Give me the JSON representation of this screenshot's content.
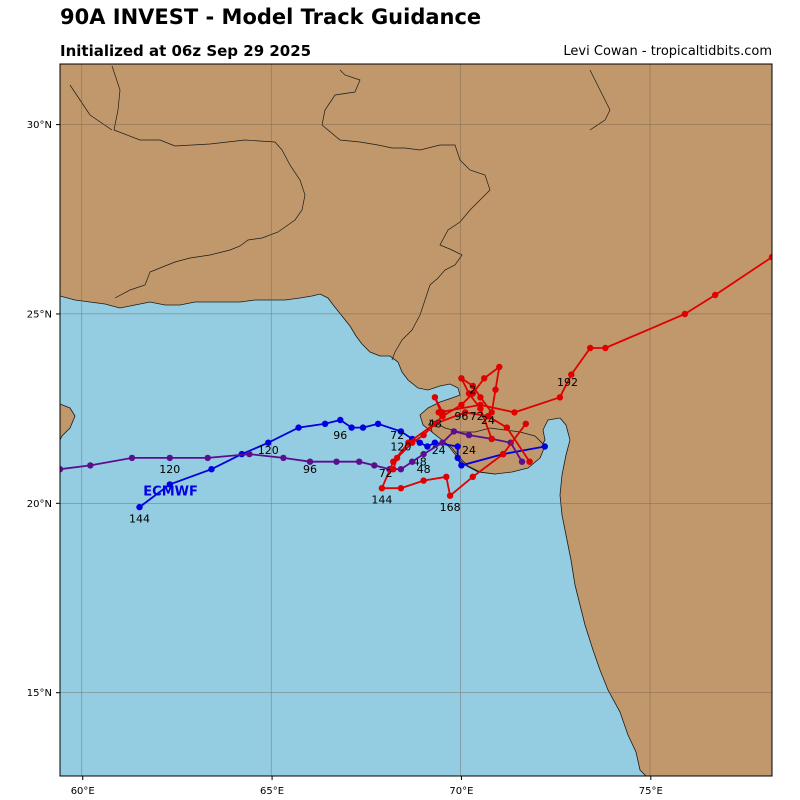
{
  "header": {
    "title": "90A INVEST - Model Track Guidance",
    "subtitle": "Initialized at 06z Sep 29 2025",
    "credit": "Levi Cowan - tropicaltidbits.com"
  },
  "colors": {
    "land": "#c0986c",
    "ocean": "#94cce2",
    "coast": "#1a1a1a",
    "grid": "#6b5a4a",
    "ecmwf": "#0000e0",
    "red_track": "#e00000",
    "purple_track": "#5b0f8f"
  },
  "map": {
    "lon_range": [
      59.4,
      78.2
    ],
    "lat_range": [
      12.8,
      31.6
    ],
    "lon_ticks": [
      {
        "value": 60,
        "label": "60°E"
      },
      {
        "value": 65,
        "label": "65°E"
      },
      {
        "value": 70,
        "label": "70°E"
      },
      {
        "value": 75,
        "label": "75°E"
      }
    ],
    "lat_ticks": [
      {
        "value": 15,
        "label": "15°N"
      },
      {
        "value": 20,
        "label": "20°N"
      },
      {
        "value": 25,
        "label": "25°N"
      },
      {
        "value": 30,
        "label": "30°N"
      }
    ]
  },
  "chart_data": {
    "type": "scatter",
    "title": "90A INVEST - Model Track Guidance",
    "subtitle": "Initialized at 06z Sep 29 2025",
    "xlim": [
      59.4,
      78.2
    ],
    "ylim": [
      12.8,
      31.6
    ],
    "series": [
      {
        "name": "ECMWF",
        "color": "#0000e0",
        "points": [
          [
            72.2,
            21.5
          ],
          [
            71.1,
            21.3
          ],
          [
            70.0,
            21.0
          ],
          [
            69.9,
            21.2
          ],
          [
            69.9,
            21.5
          ],
          [
            69.3,
            21.6
          ],
          [
            69.1,
            21.5
          ],
          [
            68.9,
            21.6
          ],
          [
            68.7,
            21.7
          ],
          [
            68.4,
            21.9
          ],
          [
            67.8,
            22.1
          ],
          [
            67.4,
            22.0
          ],
          [
            67.1,
            22.0
          ],
          [
            66.8,
            22.2
          ],
          [
            66.4,
            22.1
          ],
          [
            65.7,
            22.0
          ],
          [
            64.9,
            21.6
          ],
          [
            64.2,
            21.3
          ],
          [
            63.4,
            20.9
          ],
          [
            62.3,
            20.5
          ],
          [
            61.5,
            19.9
          ]
        ],
        "labels": [
          {
            "text": "24",
            "lon": 69.4,
            "lat": 21.3
          },
          {
            "text": "48",
            "lon": 68.9,
            "lat": 21.0
          },
          {
            "text": "72",
            "lon": 68.3,
            "lat": 21.7
          },
          {
            "text": "96",
            "lon": 66.8,
            "lat": 21.7
          },
          {
            "text": "120",
            "lon": 64.9,
            "lat": 21.3
          },
          {
            "text": "144",
            "lon": 61.5,
            "lat": 19.5
          }
        ],
        "name_label": {
          "text": "ECMWF",
          "lon": 61.6,
          "lat": 20.2
        }
      },
      {
        "name": "",
        "color": "#5b0f8f",
        "points": [
          [
            71.6,
            21.1
          ],
          [
            71.3,
            21.6
          ],
          [
            70.8,
            21.7
          ],
          [
            70.2,
            21.8
          ],
          [
            69.8,
            21.9
          ],
          [
            69.5,
            21.6
          ],
          [
            69.0,
            21.3
          ],
          [
            68.7,
            21.1
          ],
          [
            68.4,
            20.9
          ],
          [
            68.1,
            20.9
          ],
          [
            67.7,
            21.0
          ],
          [
            67.3,
            21.1
          ],
          [
            66.7,
            21.1
          ],
          [
            66.0,
            21.1
          ],
          [
            65.3,
            21.2
          ],
          [
            64.4,
            21.3
          ],
          [
            63.3,
            21.2
          ],
          [
            62.3,
            21.2
          ],
          [
            61.3,
            21.2
          ],
          [
            60.2,
            21.0
          ],
          [
            59.4,
            20.9
          ]
        ],
        "labels": [
          {
            "text": "24",
            "lon": 70.2,
            "lat": 21.3
          },
          {
            "text": "48",
            "lon": 69.0,
            "lat": 20.8
          },
          {
            "text": "96",
            "lon": 66.0,
            "lat": 20.8
          },
          {
            "text": "120",
            "lon": 62.3,
            "lat": 20.8
          }
        ]
      },
      {
        "name": "",
        "color": "#e00000",
        "points": [
          [
            71.8,
            21.1
          ],
          [
            71.2,
            22.0
          ],
          [
            70.7,
            22.3
          ],
          [
            70.1,
            22.4
          ],
          [
            69.3,
            22.1
          ],
          [
            68.6,
            21.6
          ],
          [
            68.2,
            21.1
          ],
          [
            67.9,
            20.4
          ],
          [
            68.4,
            20.4
          ],
          [
            69.0,
            20.6
          ],
          [
            69.6,
            20.7
          ],
          [
            69.7,
            20.2
          ],
          [
            70.3,
            20.7
          ],
          [
            71.1,
            21.3
          ],
          [
            71.7,
            22.1
          ]
        ],
        "labels": [
          {
            "text": "48",
            "lon": 69.3,
            "lat": 22.0
          },
          {
            "text": "72",
            "lon": 68.0,
            "lat": 20.7
          },
          {
            "text": "144",
            "lon": 67.9,
            "lat": 20.0
          },
          {
            "text": "168",
            "lon": 69.7,
            "lat": 19.8
          }
        ]
      },
      {
        "name": "",
        "color": "#e00000",
        "points": [
          [
            70.8,
            21.7
          ],
          [
            70.5,
            22.5
          ],
          [
            70.2,
            22.9
          ],
          [
            70.0,
            23.3
          ],
          [
            70.3,
            23.1
          ],
          [
            70.5,
            22.8
          ],
          [
            70.8,
            22.4
          ],
          [
            70.9,
            23.0
          ],
          [
            71.0,
            23.6
          ],
          [
            70.6,
            23.3
          ],
          [
            70.3,
            22.9
          ],
          [
            70.0,
            22.6
          ],
          [
            69.5,
            22.3
          ],
          [
            69.3,
            22.8
          ],
          [
            69.5,
            22.4
          ]
        ],
        "labels": [
          {
            "text": "24",
            "lon": 70.7,
            "lat": 22.1
          },
          {
            "text": "72",
            "lon": 70.4,
            "lat": 22.2
          },
          {
            "text": "96",
            "lon": 70.0,
            "lat": 22.2
          },
          {
            "text": "2",
            "lon": 70.3,
            "lat": 22.9
          }
        ]
      },
      {
        "name": "",
        "color": "#e00000",
        "points": [
          [
            69.4,
            22.4
          ],
          [
            70.5,
            22.6
          ],
          [
            71.4,
            22.4
          ],
          [
            72.6,
            22.8
          ],
          [
            72.9,
            23.4
          ],
          [
            73.4,
            24.1
          ],
          [
            73.8,
            24.1
          ],
          [
            75.9,
            25.0
          ],
          [
            76.7,
            25.5
          ],
          [
            78.2,
            26.5
          ]
        ],
        "labels": [
          {
            "text": "192",
            "lon": 72.8,
            "lat": 23.1
          }
        ]
      },
      {
        "name": "",
        "color": "#e00000",
        "points": [
          [
            69.5,
            22.3
          ],
          [
            69.0,
            21.8
          ],
          [
            68.7,
            21.6
          ],
          [
            68.3,
            21.2
          ],
          [
            68.2,
            20.9
          ]
        ],
        "labels": [
          {
            "text": "120",
            "lon": 68.4,
            "lat": 21.4
          }
        ]
      }
    ]
  }
}
